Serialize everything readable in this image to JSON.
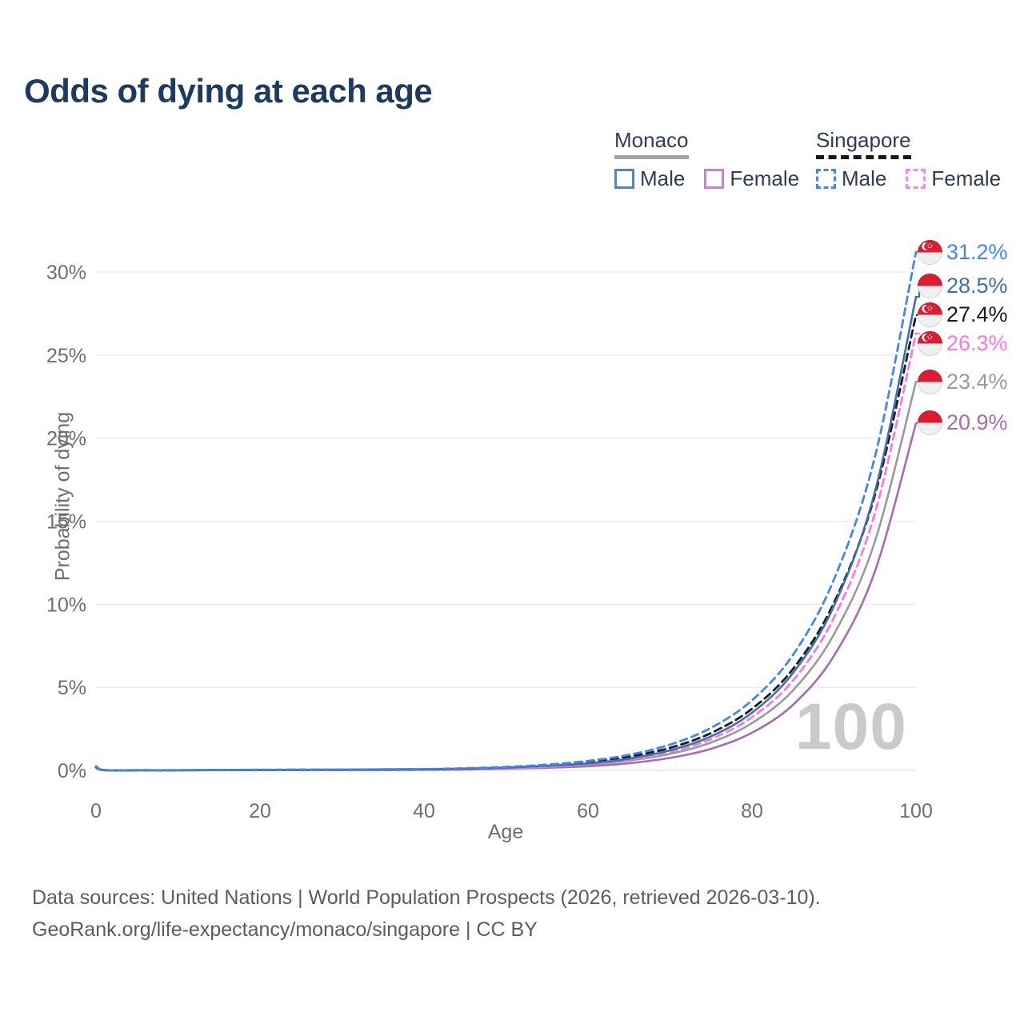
{
  "title": "Odds of dying at each age",
  "legend": {
    "monaco": {
      "header": "Monaco",
      "male_label": "Male",
      "female_label": "Female"
    },
    "singapore": {
      "header": "Singapore",
      "male_label": "Male",
      "female_label": "Female"
    }
  },
  "watermark": "100",
  "footer": {
    "line1": "Data sources: United Nations | World Population Prospects (2026, retrieved 2026-03-10).",
    "line2": "GeoRank.org/life-expectancy/monaco/singapore | CC BY"
  },
  "colors": {
    "title": "#1d3a5f",
    "legend_text": "#2e3d55",
    "axis_text": "#6f6f6f",
    "gridline": "#ececec",
    "watermark": "#cacaca",
    "monaco_underline": "#a3a3a3",
    "singapore_underline": "#161616"
  },
  "chart_data": {
    "type": "line",
    "title": "Odds of dying at each age",
    "xlabel": "Age",
    "ylabel": "Probability of dying",
    "xlim": [
      0,
      100
    ],
    "ylim": [
      0,
      32
    ],
    "xticks": [
      0,
      20,
      40,
      60,
      80,
      100
    ],
    "yticks": [
      0,
      5,
      10,
      15,
      20,
      25,
      30
    ],
    "ytick_suffix": "%",
    "grid": true,
    "legend_position": "top-right",
    "ages": [
      0,
      1,
      5,
      10,
      20,
      30,
      40,
      45,
      50,
      55,
      60,
      65,
      70,
      75,
      80,
      85,
      90,
      95,
      100
    ],
    "series": [
      {
        "id": "monaco-female",
        "name": "Monaco Female",
        "country": "Monaco",
        "sex": "Female",
        "style": "solid",
        "color": "#a56cb0",
        "flag": "monaco",
        "end_label": "20.9%",
        "end_value": 20.9,
        "values": [
          0.15,
          0.01,
          0.01,
          0.01,
          0.02,
          0.02,
          0.04,
          0.06,
          0.1,
          0.16,
          0.25,
          0.43,
          0.75,
          1.3,
          2.27,
          3.95,
          6.9,
          12.0,
          20.9
        ]
      },
      {
        "id": "monaco-all",
        "name": "Monaco",
        "country": "Monaco",
        "sex": "All",
        "style": "solid",
        "color": "#9a9a9a",
        "flag": "monaco",
        "end_label": "23.4%",
        "end_value": 23.4,
        "values": [
          0.18,
          0.01,
          0.01,
          0.01,
          0.02,
          0.03,
          0.05,
          0.08,
          0.13,
          0.21,
          0.35,
          0.59,
          0.99,
          1.68,
          2.85,
          4.82,
          8.2,
          13.8,
          23.4
        ]
      },
      {
        "id": "singapore-female",
        "name": "Singapore Female",
        "country": "Singapore",
        "sex": "Female",
        "style": "dashed",
        "color": "#f878e0",
        "flag": "singapore",
        "end_label": "26.3%",
        "end_value": 26.3,
        "values": [
          0.18,
          0.01,
          0.01,
          0.01,
          0.02,
          0.03,
          0.05,
          0.08,
          0.14,
          0.23,
          0.39,
          0.66,
          1.11,
          1.89,
          3.2,
          5.41,
          9.2,
          15.5,
          26.3
        ]
      },
      {
        "id": "singapore-all",
        "name": "Singapore",
        "country": "Singapore",
        "sex": "All",
        "style": "dashed",
        "color": "#1a1a1a",
        "flag": "singapore",
        "end_label": "27.4%",
        "end_value": 27.4,
        "values": [
          0.2,
          0.02,
          0.01,
          0.01,
          0.03,
          0.04,
          0.06,
          0.1,
          0.19,
          0.31,
          0.5,
          0.83,
          1.36,
          2.25,
          3.71,
          6.11,
          10.1,
          16.6,
          27.4
        ]
      },
      {
        "id": "monaco-male",
        "name": "Monaco Male",
        "country": "Monaco",
        "sex": "Male",
        "style": "solid",
        "color": "#3d6eb4",
        "flag": "monaco",
        "end_label": "28.5%",
        "end_value": 28.5,
        "values": [
          0.22,
          0.02,
          0.01,
          0.01,
          0.03,
          0.05,
          0.07,
          0.11,
          0.17,
          0.28,
          0.42,
          0.71,
          1.21,
          2.05,
          3.47,
          5.87,
          9.9,
          16.8,
          28.5
        ]
      },
      {
        "id": "singapore-male",
        "name": "Singapore Male",
        "country": "Singapore",
        "sex": "Male",
        "style": "dashed",
        "color": "#4285f4",
        "flag": "singapore",
        "end_label": "31.2%",
        "end_value": 31.2,
        "values": [
          0.25,
          0.02,
          0.01,
          0.01,
          0.04,
          0.05,
          0.08,
          0.13,
          0.21,
          0.35,
          0.57,
          0.94,
          1.55,
          2.56,
          4.22,
          6.96,
          11.5,
          18.9,
          31.2
        ]
      }
    ]
  }
}
